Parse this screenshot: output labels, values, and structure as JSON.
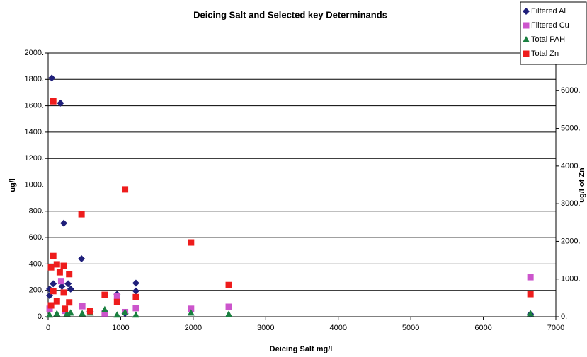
{
  "chart_data": {
    "type": "scatter",
    "title": "Deicing Salt and Selected key Determinands",
    "xlabel": "Deicing Salt mg/l",
    "ylabel": "ug/l",
    "y2label": "ug/l of Zn",
    "xlim": [
      0,
      7000
    ],
    "xticks": [
      0,
      1000,
      2000,
      3000,
      4000,
      5000,
      6000,
      7000
    ],
    "ylim": [
      0,
      2000
    ],
    "yticks": [
      {
        "value": 0,
        "label": "0."
      },
      {
        "value": 200,
        "label": "200."
      },
      {
        "value": 400,
        "label": "400."
      },
      {
        "value": 600,
        "label": "600."
      },
      {
        "value": 800,
        "label": "800."
      },
      {
        "value": 1000,
        "label": "1000."
      },
      {
        "value": 1200,
        "label": "1200."
      },
      {
        "value": 1400,
        "label": "1400."
      },
      {
        "value": 1600,
        "label": "1600."
      },
      {
        "value": 1800,
        "label": "1800."
      },
      {
        "value": 2000,
        "label": "2000."
      }
    ],
    "y2lim": [
      0,
      7000
    ],
    "y2ticks": [
      {
        "value": 0,
        "label": "0."
      },
      {
        "value": 1000,
        "label": "1000."
      },
      {
        "value": 2000,
        "label": "2000."
      },
      {
        "value": 3000,
        "label": "3000."
      },
      {
        "value": 4000,
        "label": "4000."
      },
      {
        "value": 5000,
        "label": "5000."
      },
      {
        "value": 6000,
        "label": "6000."
      }
    ],
    "grid": true,
    "legend": "top-right",
    "series": [
      {
        "name": "Filtered Al",
        "color": "#1f1f7a",
        "marker": "diamond",
        "x": [
          50,
          170,
          215,
          460,
          1210,
          1210,
          70,
          20,
          275,
          310,
          190,
          950,
          580,
          1060,
          20,
          6650
        ],
        "values": [
          1810,
          1620,
          710,
          440,
          255,
          195,
          250,
          210,
          250,
          210,
          230,
          170,
          40,
          25,
          160,
          20
        ]
      },
      {
        "name": "Filtered Cu",
        "color": "#cc55cc",
        "marker": "square",
        "x": [
          180,
          470,
          950,
          1210,
          1970,
          2490,
          6650,
          20,
          230,
          1060,
          780
        ],
        "values": [
          270,
          80,
          155,
          65,
          60,
          75,
          300,
          60,
          45,
          35,
          25
        ]
      },
      {
        "name": "Total PAH",
        "color": "#1a8040",
        "marker": "triangle",
        "x": [
          780,
          950,
          1060,
          1210,
          1970,
          2490,
          6650,
          470,
          120,
          260,
          20,
          580,
          310
        ],
        "values": [
          55,
          15,
          35,
          15,
          30,
          20,
          25,
          25,
          25,
          25,
          15,
          30,
          30
        ]
      },
      {
        "name": "Total Zn",
        "color": "#ee1c1c",
        "marker": "square",
        "axis": "y2",
        "x": [
          70,
          1060,
          460,
          1970,
          2490,
          6650,
          70,
          120,
          215,
          160,
          290,
          40,
          780,
          1210,
          950,
          580,
          290,
          70,
          215,
          120,
          40,
          230
        ],
        "values": [
          5720,
          3380,
          2720,
          1970,
          840,
          600,
          1610,
          1390,
          1350,
          1180,
          1130,
          1310,
          580,
          520,
          390,
          150,
          380,
          680,
          640,
          410,
          300,
          210
        ]
      }
    ]
  }
}
